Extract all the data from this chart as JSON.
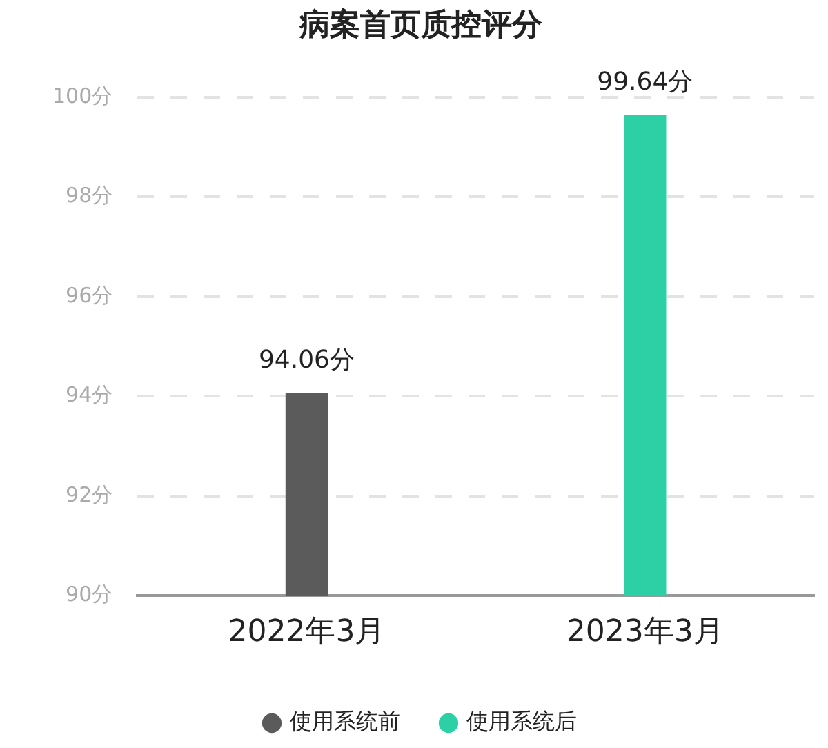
{
  "chart_data": {
    "type": "bar",
    "title": "病案首页质控评分",
    "categories": [
      "2022年3月",
      "2023年3月"
    ],
    "series": [
      {
        "name": "使用系统前",
        "color": "#5b5b5b",
        "values": [
          94.06,
          null
        ],
        "value_labels": [
          "94.06分",
          null
        ]
      },
      {
        "name": "使用系统后",
        "color": "#2dcfa5",
        "values": [
          null,
          99.64
        ],
        "value_labels": [
          null,
          "99.64分"
        ]
      }
    ],
    "ylim": [
      90,
      100
    ],
    "yticks": [
      {
        "value": 90,
        "label": "90分"
      },
      {
        "value": 92,
        "label": "92分"
      },
      {
        "value": 94,
        "label": "94分"
      },
      {
        "value": 96,
        "label": "96分"
      },
      {
        "value": 98,
        "label": "98分"
      },
      {
        "value": 100,
        "label": "100分"
      }
    ],
    "grid": "y",
    "legend": "bottom"
  }
}
